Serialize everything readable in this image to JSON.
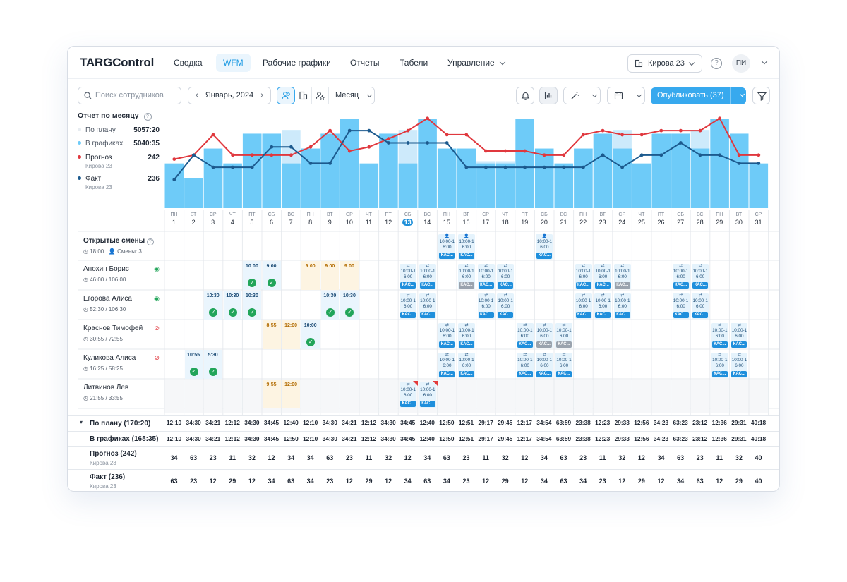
{
  "app": {
    "logo": "TARGControl"
  },
  "nav": {
    "items": [
      "Сводка",
      "WFM",
      "Рабочие графики",
      "Отчеты",
      "Табели",
      "Управление"
    ],
    "active": "WFM"
  },
  "store": {
    "label": "Кирова 23"
  },
  "user": {
    "initials": "ПИ"
  },
  "toolbar": {
    "search_placeholder": "Поиск сотрудников",
    "month": "Январь, 2024",
    "period": "Месяц",
    "publish": "Опубликовать (37)"
  },
  "report": {
    "title": "Отчет по месяцу",
    "plan_label": "По плану",
    "plan_value": "5057:20",
    "graph_label": "В графиках",
    "graph_value": "5040:35",
    "forecast_label": "Прогноз",
    "forecast_value": "242",
    "forecast_sub": "Кирова 23",
    "fact_label": "Факт",
    "fact_value": "236",
    "fact_sub": "Кирова 23"
  },
  "colors": {
    "bar": "#6ecbf8",
    "bar_light": "#cdeafb",
    "forecast": "#e0383e",
    "fact": "#1c5a8e",
    "accent": "#37a9ee"
  },
  "chart_data": {
    "type": "bar",
    "x": [
      1,
      2,
      3,
      4,
      5,
      6,
      7,
      8,
      9,
      10,
      11,
      12,
      13,
      14,
      15,
      16,
      17,
      18,
      19,
      20,
      21,
      22,
      23,
      24,
      25,
      26,
      27,
      28,
      29,
      30,
      31
    ],
    "bar_plan": [
      3,
      2,
      4,
      3,
      5,
      5,
      3,
      4,
      5,
      6,
      3,
      5,
      3,
      6,
      4,
      4,
      3,
      3,
      6,
      4,
      3,
      4,
      5,
      4,
      3,
      5,
      5,
      4,
      6,
      5,
      3
    ],
    "bar_light": [
      0,
      0,
      0,
      0,
      0,
      0,
      5,
      0,
      0,
      0,
      0,
      0,
      5,
      0,
      0,
      0,
      3,
      3,
      0,
      0,
      0,
      0,
      0,
      5,
      0,
      0,
      0,
      5,
      0,
      0,
      0
    ],
    "series": [
      {
        "name": "Прогноз",
        "values": [
          24,
          26,
          36,
          26,
          26,
          26,
          26,
          30,
          38,
          28,
          30,
          34,
          38,
          44,
          36,
          36,
          28,
          28,
          28,
          26,
          26,
          36,
          38,
          36,
          36,
          38,
          38,
          38,
          44,
          26,
          26
        ]
      },
      {
        "name": "Факт",
        "values": [
          14,
          26,
          20,
          20,
          20,
          30,
          30,
          22,
          22,
          38,
          38,
          32,
          32,
          32,
          32,
          20,
          20,
          20,
          20,
          20,
          20,
          20,
          26,
          20,
          26,
          26,
          32,
          26,
          26,
          22,
          22
        ]
      }
    ],
    "ylim": [
      0,
      46
    ]
  },
  "days": [
    {
      "w": "ПН",
      "d": "1"
    },
    {
      "w": "ВТ",
      "d": "2"
    },
    {
      "w": "СР",
      "d": "3"
    },
    {
      "w": "ЧТ",
      "d": "4"
    },
    {
      "w": "ПТ",
      "d": "5"
    },
    {
      "w": "СБ",
      "d": "6"
    },
    {
      "w": "ВС",
      "d": "7"
    },
    {
      "w": "ПН",
      "d": "8"
    },
    {
      "w": "ВТ",
      "d": "9"
    },
    {
      "w": "СР",
      "d": "10"
    },
    {
      "w": "ЧТ",
      "d": "11"
    },
    {
      "w": "ПТ",
      "d": "12"
    },
    {
      "w": "СБ",
      "d": "13"
    },
    {
      "w": "ВС",
      "d": "14"
    },
    {
      "w": "ПН",
      "d": "15"
    },
    {
      "w": "ВТ",
      "d": "16"
    },
    {
      "w": "СР",
      "d": "17"
    },
    {
      "w": "ЧТ",
      "d": "18"
    },
    {
      "w": "ПТ",
      "d": "19"
    },
    {
      "w": "СБ",
      "d": "20"
    },
    {
      "w": "ВС",
      "d": "21"
    },
    {
      "w": "ПН",
      "d": "22"
    },
    {
      "w": "ВТ",
      "d": "23"
    },
    {
      "w": "СР",
      "d": "24"
    },
    {
      "w": "ЧТ",
      "d": "25"
    },
    {
      "w": "ПТ",
      "d": "26"
    },
    {
      "w": "СБ",
      "d": "27"
    },
    {
      "w": "ВС",
      "d": "28"
    },
    {
      "w": "ПН",
      "d": "29"
    },
    {
      "w": "ВТ",
      "d": "30"
    },
    {
      "w": "СР",
      "d": "31"
    }
  ],
  "open_shifts": {
    "title": "Открытые смены",
    "time": "18:00",
    "count": "Смены: 3"
  },
  "shift_time": "10:00-16:00",
  "kas": "КАС...",
  "employees": [
    {
      "name": "Анохин Борис",
      "hours": "46:00 / 106:00",
      "vis": "eye"
    },
    {
      "name": "Егорова Алиса",
      "hours": "52:30 / 106:30",
      "vis": "eye"
    },
    {
      "name": "Краснов Тимофей",
      "hours": "30:55 / 72:55",
      "vis": "eye-off"
    },
    {
      "name": "Куликова Алиса",
      "hours": "16:25 / 58:25",
      "vis": "eye-off"
    },
    {
      "name": "Литвинов Лев",
      "hours": "21:55 / 33:55",
      "vis": ""
    }
  ],
  "entries": {
    "anokhin": [
      {
        "d": 5,
        "t": "10:00",
        "c": "blue",
        "chk": 1
      },
      {
        "d": 6,
        "t": "9:00",
        "c": "blue",
        "chk": 1
      },
      {
        "d": 8,
        "t": "9:00",
        "c": "orange"
      },
      {
        "d": 9,
        "t": "9:00",
        "c": "orange"
      },
      {
        "d": 10,
        "t": "9:00",
        "c": "orange"
      }
    ],
    "egorova": [
      {
        "d": 3,
        "t": "10:30",
        "c": "blue",
        "chk": 1
      },
      {
        "d": 4,
        "t": "10:30",
        "c": "blue",
        "chk": 1
      },
      {
        "d": 5,
        "t": "10:30",
        "c": "blue",
        "chk": 1
      },
      {
        "d": 9,
        "t": "10:30",
        "c": "blue",
        "chk": 1
      },
      {
        "d": 10,
        "t": "10:30",
        "c": "blue",
        "chk": 1
      }
    ],
    "krasnov": [
      {
        "d": 6,
        "t": "8:55",
        "c": "orange"
      },
      {
        "d": 7,
        "t": "12:00",
        "c": "orange"
      },
      {
        "d": 8,
        "t": "10:00",
        "c": "blue",
        "chk": 1
      }
    ],
    "kulikova": [
      {
        "d": 2,
        "t": "10:55",
        "c": "blue",
        "chk": 1
      },
      {
        "d": 3,
        "t": "5:30",
        "c": "blue",
        "chk": 1
      }
    ],
    "litvinov": [
      {
        "d": 6,
        "t": "9:55",
        "c": "orange"
      },
      {
        "d": 7,
        "t": "12:00",
        "c": "orange"
      }
    ]
  },
  "shift_cells": {
    "open": [
      15,
      16,
      20
    ],
    "anokhin": [
      13,
      14,
      16,
      17,
      18,
      22,
      23,
      24,
      27,
      28
    ],
    "egorova": [
      13,
      14,
      17,
      18,
      22,
      23,
      24,
      27,
      28
    ],
    "krasnov": [
      15,
      16,
      19,
      20,
      21,
      29,
      30
    ],
    "kulikova": [
      15,
      16,
      19,
      20,
      21,
      29,
      30
    ],
    "litvinov": [
      13,
      14
    ]
  },
  "totals": {
    "plan_label": "По плану (170:20)",
    "plan": [
      "12:10",
      "34:30",
      "34:21",
      "12:12",
      "34:30",
      "34:45",
      "12:40",
      "12:10",
      "34:30",
      "34:21",
      "12:12",
      "34:30",
      "34:45",
      "12:40",
      "12:50",
      "12:51",
      "29:17",
      "29:45",
      "12:17",
      "34:54",
      "63:59",
      "23:38",
      "12:23",
      "29:33",
      "12:56",
      "34:23",
      "63:23",
      "23:12",
      "12:36",
      "29:31",
      "40:18"
    ],
    "graph_label": "В графиках (168:35)",
    "graph": [
      "12:10",
      "34:30",
      "34:21",
      "12:12",
      "34:30",
      "34:45",
      "12:50",
      "12:10",
      "34:30",
      "34:21",
      "12:12",
      "34:30",
      "34:45",
      "12:40",
      "12:50",
      "12:51",
      "29:17",
      "29:45",
      "12:17",
      "34:54",
      "63:59",
      "23:38",
      "12:23",
      "29:33",
      "12:56",
      "34:23",
      "63:23",
      "23:12",
      "12:36",
      "29:31",
      "40:18"
    ],
    "forecast_label": "Прогноз (242)",
    "forecast_sub": "Кирова 23",
    "forecast": [
      "34",
      "63",
      "23",
      "11",
      "32",
      "12",
      "34",
      "34",
      "63",
      "23",
      "11",
      "32",
      "12",
      "34",
      "63",
      "23",
      "11",
      "32",
      "12",
      "34",
      "63",
      "23",
      "11",
      "32",
      "12",
      "34",
      "63",
      "23",
      "11",
      "32",
      "40"
    ],
    "fact_label": "Факт (236)",
    "fact_sub": "Кирова 23",
    "fact": [
      "63",
      "23",
      "12",
      "29",
      "12",
      "34",
      "63",
      "34",
      "23",
      "12",
      "29",
      "12",
      "34",
      "63",
      "34",
      "23",
      "12",
      "29",
      "12",
      "34",
      "63",
      "34",
      "23",
      "12",
      "29",
      "12",
      "34",
      "63",
      "12",
      "29",
      "40"
    ]
  }
}
